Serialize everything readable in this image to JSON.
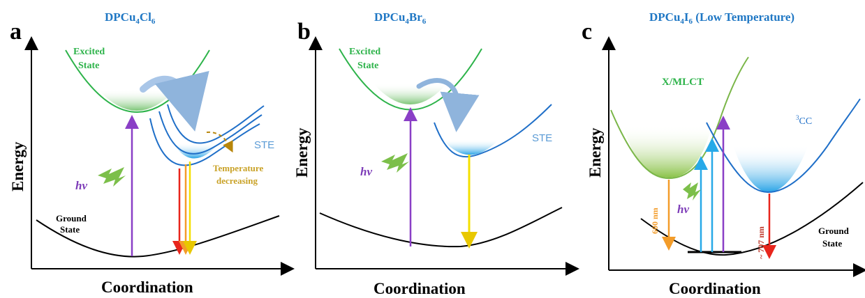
{
  "colors": {
    "blue_title": "#1f77c4",
    "green_curve": "#2db34a",
    "blue_curve": "#1f6fc8",
    "purple": "#8a3fc6",
    "yellow": "#f4e000",
    "orange": "#f39c2a",
    "red": "#e8251c",
    "gold_text": "#c9a227",
    "sky": "#27a9e8"
  },
  "panel_a": {
    "letter": "a",
    "title_base": "DPCu",
    "title_sub1": "4",
    "title_mid": "Cl",
    "title_sub2": "6",
    "excited_line1": "Excited",
    "excited_line2": "State",
    "ste": "STE",
    "temp_line1": "Temperature",
    "temp_line2": "decreasing",
    "hv": "hv",
    "ground_line1": "Ground",
    "ground_line2": "State",
    "ylabel": "Energy",
    "xlabel": "Coordination"
  },
  "panel_b": {
    "letter": "b",
    "title_base": "DPCu",
    "title_sub1": "4",
    "title_mid": "Br",
    "title_sub2": "6",
    "excited_line1": "Excited",
    "excited_line2": "State",
    "ste": "STE",
    "hv": "hv",
    "ylabel": "Energy",
    "xlabel": "Coordination"
  },
  "panel_c": {
    "letter": "c",
    "title_base": "DPCu",
    "title_sub1": "4",
    "title_mid": "I",
    "title_sub2": "6",
    "title_suffix": " (Low Temperature)",
    "xmlct": "X/MLCT",
    "cc_sup": "3",
    "cc": "CC",
    "wave1": "600 nm",
    "wave2": "~ 707 nm",
    "hv": "hv",
    "ground_line1": "Ground",
    "ground_line2": "State",
    "ylabel": "Energy",
    "xlabel": "Coordination"
  }
}
